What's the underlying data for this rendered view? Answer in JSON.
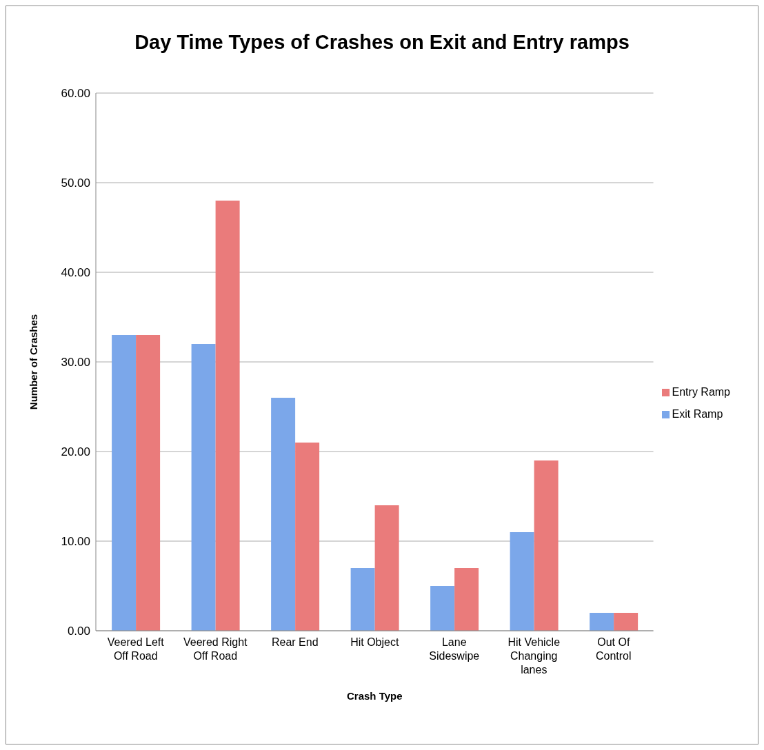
{
  "chart_data": {
    "type": "bar",
    "title": "Day Time Types of Crashes on Exit and Entry ramps",
    "xlabel": "Crash Type",
    "ylabel": "Number of Crashes",
    "categories": [
      "Veered Left Off Road",
      "Veered Right Off Road",
      "Rear End",
      "Hit Object",
      "Lane Sideswipe",
      "Hit Vehicle Changing lanes",
      "Out Of Control"
    ],
    "series": [
      {
        "name": "Exit Ramp",
        "color": "#7ba7ea",
        "values": [
          33,
          32,
          26,
          7,
          5,
          11,
          2
        ]
      },
      {
        "name": "Entry Ramp",
        "color": "#ea7b7b",
        "values": [
          33,
          48,
          21,
          14,
          7,
          19,
          2
        ]
      }
    ],
    "ylim": [
      0,
      60
    ],
    "yticks": [
      {
        "value": 0,
        "label": "0.00"
      },
      {
        "value": 10,
        "label": "10.00"
      },
      {
        "value": 20,
        "label": "20.00"
      },
      {
        "value": 30,
        "label": "30.00"
      },
      {
        "value": 40,
        "label": "40.00"
      },
      {
        "value": 50,
        "label": "50.00"
      },
      {
        "value": 60,
        "label": "60.00"
      }
    ],
    "grid": "y",
    "legend": "right"
  }
}
